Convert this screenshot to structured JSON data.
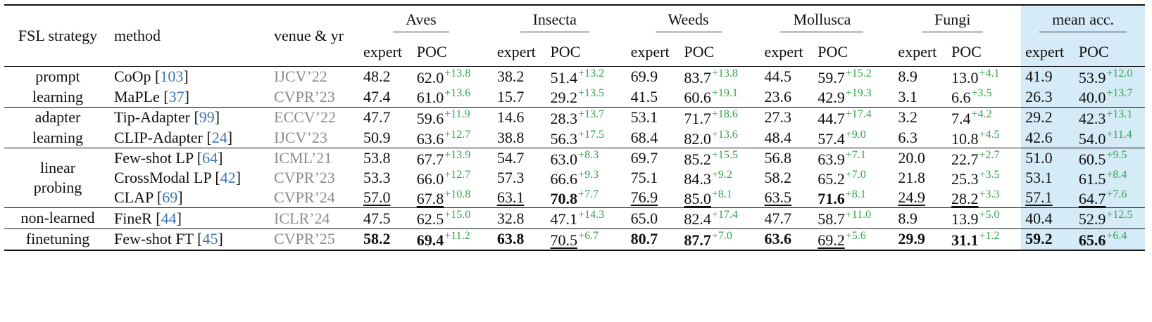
{
  "header": {
    "strategy": "FSL strategy",
    "method": "method",
    "venue": "venue & yr",
    "groups": [
      "Aves",
      "Insecta",
      "Weeds",
      "Mollusca",
      "Fungi",
      "mean acc."
    ],
    "sub_expert": "expert",
    "sub_poc": "POC"
  },
  "groups": [
    {
      "strategy": "prompt learning",
      "rows": [
        {
          "method": "CoOp",
          "cite": "103",
          "venue": "IJCV’22",
          "cells": [
            {
              "e": "48.2",
              "p": "62.0",
              "d": "+13.8"
            },
            {
              "e": "38.2",
              "p": "51.4",
              "d": "+13.2"
            },
            {
              "e": "69.9",
              "p": "83.7",
              "d": "+13.8"
            },
            {
              "e": "44.5",
              "p": "59.7",
              "d": "+15.2"
            },
            {
              "e": "8.9",
              "p": "13.0",
              "d": "+4.1"
            },
            {
              "e": "41.9",
              "p": "53.9",
              "d": "+12.0"
            }
          ]
        },
        {
          "method": "MaPLe",
          "cite": "37",
          "venue": "CVPR’23",
          "cells": [
            {
              "e": "47.4",
              "p": "61.0",
              "d": "+13.6"
            },
            {
              "e": "15.7",
              "p": "29.2",
              "d": "+13.5"
            },
            {
              "e": "41.5",
              "p": "60.6",
              "d": "+19.1"
            },
            {
              "e": "23.6",
              "p": "42.9",
              "d": "+19.3"
            },
            {
              "e": "3.1",
              "p": "6.6",
              "d": "+3.5"
            },
            {
              "e": "26.3",
              "p": "40.0",
              "d": "+13.7"
            }
          ]
        }
      ]
    },
    {
      "strategy": "adapter learning",
      "rows": [
        {
          "method": "Tip-Adapter",
          "cite": "99",
          "venue": "ECCV’22",
          "cells": [
            {
              "e": "47.7",
              "p": "59.6",
              "d": "+11.9"
            },
            {
              "e": "14.6",
              "p": "28.3",
              "d": "+13.7"
            },
            {
              "e": "53.1",
              "p": "71.7",
              "d": "+18.6"
            },
            {
              "e": "27.3",
              "p": "44.7",
              "d": "+17.4"
            },
            {
              "e": "3.2",
              "p": "7.4",
              "d": "+4.2"
            },
            {
              "e": "29.2",
              "p": "42.3",
              "d": "+13.1"
            }
          ]
        },
        {
          "method": "CLIP-Adapter",
          "cite": "24",
          "venue": "IJCV’23",
          "cells": [
            {
              "e": "50.9",
              "p": "63.6",
              "d": "+12.7"
            },
            {
              "e": "38.8",
              "p": "56.3",
              "d": "+17.5"
            },
            {
              "e": "68.4",
              "p": "82.0",
              "d": "+13.6"
            },
            {
              "e": "48.4",
              "p": "57.4",
              "d": "+9.0"
            },
            {
              "e": "6.3",
              "p": "10.8",
              "d": "+4.5"
            },
            {
              "e": "42.6",
              "p": "54.0",
              "d": "+11.4"
            }
          ]
        }
      ]
    },
    {
      "strategy": "linear probing",
      "rows": [
        {
          "method": "Few-shot LP",
          "cite": "64",
          "venue": "ICML’21",
          "cells": [
            {
              "e": "53.8",
              "p": "67.7",
              "d": "+13.9"
            },
            {
              "e": "54.7",
              "p": "63.0",
              "d": "+8.3"
            },
            {
              "e": "69.7",
              "p": "85.2",
              "d": "+15.5"
            },
            {
              "e": "56.8",
              "p": "63.9",
              "d": "+7.1"
            },
            {
              "e": "20.0",
              "p": "22.7",
              "d": "+2.7"
            },
            {
              "e": "51.0",
              "p": "60.5",
              "d": "+9.5"
            }
          ]
        },
        {
          "method": "CrossModal LP",
          "cite": "42",
          "venue": "CVPR’23",
          "cells": [
            {
              "e": "53.3",
              "p": "66.0",
              "d": "+12.7"
            },
            {
              "e": "57.3",
              "p": "66.6",
              "d": "+9.3"
            },
            {
              "e": "75.1",
              "p": "84.3",
              "d": "+9.2"
            },
            {
              "e": "58.2",
              "p": "65.2",
              "d": "+7.0"
            },
            {
              "e": "21.8",
              "p": "25.3",
              "d": "+3.5"
            },
            {
              "e": "53.1",
              "p": "61.5",
              "d": "+8.4"
            }
          ]
        },
        {
          "method": "CLAP",
          "cite": "69",
          "venue": "CVPR’24",
          "cells": [
            {
              "e": "57.0",
              "p": "67.8",
              "d": "+10.8",
              "eu": true,
              "pu": true
            },
            {
              "e": "63.1",
              "p": "70.8",
              "d": "+7.7",
              "eu": true,
              "pb": true
            },
            {
              "e": "76.9",
              "p": "85.0",
              "d": "+8.1",
              "eu": true,
              "pu": true
            },
            {
              "e": "63.5",
              "p": "71.6",
              "d": "+8.1",
              "eu": true,
              "pb": true
            },
            {
              "e": "24.9",
              "p": "28.2",
              "d": "+3.3",
              "eu": true,
              "pu": true
            },
            {
              "e": "57.1",
              "p": "64.7",
              "d": "+7.6",
              "eu": true,
              "pu": true
            }
          ]
        }
      ]
    },
    {
      "strategy": "non-learned",
      "rows": [
        {
          "method": "FineR",
          "cite": "44",
          "venue": "ICLR’24",
          "cells": [
            {
              "e": "47.5",
              "p": "62.5",
              "d": "+15.0"
            },
            {
              "e": "32.8",
              "p": "47.1",
              "d": "+14.3"
            },
            {
              "e": "65.0",
              "p": "82.4",
              "d": "+17.4"
            },
            {
              "e": "47.7",
              "p": "58.7",
              "d": "+11.0"
            },
            {
              "e": "8.9",
              "p": "13.9",
              "d": "+5.0"
            },
            {
              "e": "40.4",
              "p": "52.9",
              "d": "+12.5"
            }
          ]
        }
      ]
    },
    {
      "strategy": "finetuning",
      "rows": [
        {
          "method": "Few-shot FT",
          "cite": "45",
          "venue": "CVPR’25",
          "cells": [
            {
              "e": "58.2",
              "p": "69.4",
              "d": "+11.2",
              "eb": true,
              "pb": true
            },
            {
              "e": "63.8",
              "p": "70.5",
              "d": "+6.7",
              "eb": true,
              "pu": true
            },
            {
              "e": "80.7",
              "p": "87.7",
              "d": "+7.0",
              "eb": true,
              "pb": true
            },
            {
              "e": "63.6",
              "p": "69.2",
              "d": "+5.6",
              "eb": true,
              "pu": true
            },
            {
              "e": "29.9",
              "p": "31.1",
              "d": "+1.2",
              "eb": true,
              "pb": true
            },
            {
              "e": "59.2",
              "p": "65.6",
              "d": "+6.4",
              "eb": true,
              "pb": true
            }
          ]
        }
      ]
    }
  ],
  "colors": {
    "venue": "#8c8c8c",
    "cite": "#3d74b3",
    "delta": "#2fa54a",
    "highlight": "#d6ebf8"
  }
}
